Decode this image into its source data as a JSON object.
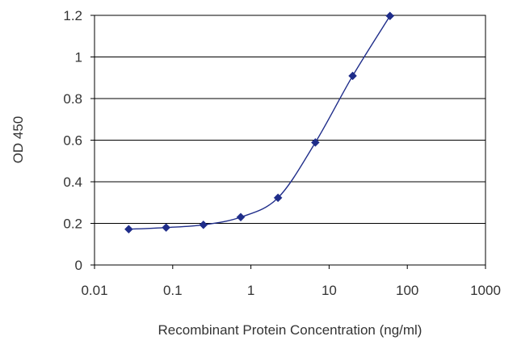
{
  "chart_data": {
    "type": "line",
    "title": "",
    "xlabel": "Recombinant Protein Concentration (ng/ml)",
    "ylabel": "OD 450",
    "x_scale": "log",
    "xlim": [
      0.01,
      1000
    ],
    "ylim": [
      0,
      1.2
    ],
    "x_ticks": [
      "0.01",
      "0.1",
      "1",
      "10",
      "100",
      "1000"
    ],
    "y_ticks": [
      "0",
      "0.2",
      "0.4",
      "0.6",
      "0.8",
      "1",
      "1.2"
    ],
    "grid": "horizontal",
    "series": [
      {
        "x": [
          0.0274,
          0.0823,
          0.247,
          0.741,
          2.22,
          6.67,
          20,
          60
        ],
        "y": [
          0.172,
          0.18,
          0.193,
          0.23,
          0.323,
          0.589,
          0.909,
          1.197
        ],
        "color": "#1f2d8a"
      }
    ],
    "colors": {
      "plot_border": "#000000",
      "grid": "#000000",
      "line": "#1f2d8a",
      "marker": "#1f2d8a"
    }
  }
}
